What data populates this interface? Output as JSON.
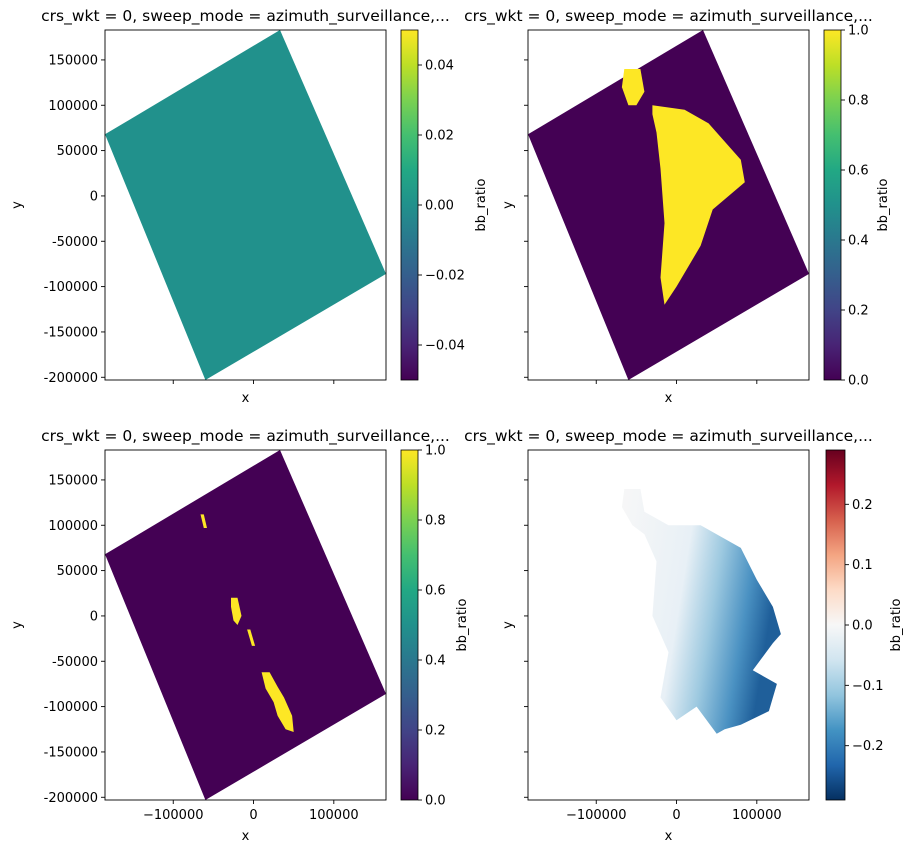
{
  "chart_data": [
    {
      "type": "heatmap",
      "title": "crs_wkt = 0, sweep_mode = azimuth_surveillance,...",
      "xlabel": "x",
      "ylabel": "y",
      "xlim": [
        -185000,
        165000
      ],
      "ylim": [
        -203000,
        183000
      ],
      "x_ticks": [
        -100000,
        0,
        100000
      ],
      "x_tick_labels": [
        "",
        "",
        ""
      ],
      "y_ticks": [
        150000,
        100000,
        50000,
        0,
        -50000,
        -100000,
        -150000,
        -200000
      ],
      "y_tick_labels": [
        "150000",
        "100000",
        "50000",
        "0",
        "-50000",
        "-100000",
        "-150000",
        "-200000"
      ],
      "colorbar": {
        "label": "bb_ratio",
        "colormap": "viridis",
        "range": [
          -0.05,
          0.05
        ],
        "ticks": [
          0.04,
          0.02,
          0.0,
          -0.02,
          -0.04
        ],
        "tick_labels": [
          "0.04",
          "0.02",
          "0.00",
          "−0.02",
          "−0.04"
        ]
      },
      "fill_value": 0.0,
      "fill_color": "#21918c",
      "footprint": [
        [
          33000,
          183000
        ],
        [
          165000,
          -86000
        ],
        [
          -60000,
          -203000
        ],
        [
          -185000,
          68000
        ]
      ]
    },
    {
      "type": "heatmap",
      "title": "crs_wkt = 0, sweep_mode = azimuth_surveillance,...",
      "xlabel": "x",
      "ylabel": "y",
      "xlim": [
        -185000,
        165000
      ],
      "ylim": [
        -203000,
        183000
      ],
      "x_ticks": [
        -100000,
        0,
        100000
      ],
      "x_tick_labels": [
        "",
        "",
        ""
      ],
      "y_ticks": [
        150000,
        100000,
        50000,
        0,
        -50000,
        -100000,
        -150000,
        -200000
      ],
      "y_tick_labels": [
        "",
        "",
        "",
        "",
        "",
        "",
        "",
        ""
      ],
      "colorbar": {
        "label": "bb_ratio",
        "colormap": "viridis",
        "range": [
          0.0,
          1.0
        ],
        "ticks": [
          1.0,
          0.8,
          0.6,
          0.4,
          0.2,
          0.0
        ],
        "tick_labels": [
          "1.0",
          "0.8",
          "0.6",
          "0.4",
          "0.2",
          "0.0"
        ]
      },
      "background_value": 0.0,
      "background_color": "#440154",
      "highlight_value": 1.0,
      "highlight_color": "#fde725",
      "footprint": [
        [
          33000,
          183000
        ],
        [
          165000,
          -86000
        ],
        [
          -60000,
          -203000
        ],
        [
          -185000,
          68000
        ]
      ],
      "highlight_regions": [
        [
          [
            -65000,
            140000
          ],
          [
            -45000,
            140000
          ],
          [
            -40000,
            115000
          ],
          [
            -50000,
            100000
          ],
          [
            -60000,
            100000
          ],
          [
            -68000,
            120000
          ]
        ],
        [
          [
            -30000,
            100000
          ],
          [
            10000,
            95000
          ],
          [
            40000,
            80000
          ],
          [
            80000,
            40000
          ],
          [
            85000,
            15000
          ],
          [
            45000,
            -15000
          ],
          [
            30000,
            -55000
          ],
          [
            0,
            -100000
          ],
          [
            -15000,
            -120000
          ],
          [
            -20000,
            -90000
          ],
          [
            -15000,
            -30000
          ],
          [
            -20000,
            30000
          ],
          [
            -25000,
            70000
          ],
          [
            -30000,
            90000
          ]
        ]
      ]
    },
    {
      "type": "heatmap",
      "title": "crs_wkt = 0, sweep_mode = azimuth_surveillance,...",
      "xlabel": "x",
      "ylabel": "y",
      "xlim": [
        -185000,
        165000
      ],
      "ylim": [
        -203000,
        183000
      ],
      "x_ticks": [
        -100000,
        0,
        100000
      ],
      "x_tick_labels": [
        "−100000",
        "0",
        "100000"
      ],
      "y_ticks": [
        150000,
        100000,
        50000,
        0,
        -50000,
        -100000,
        -150000,
        -200000
      ],
      "y_tick_labels": [
        "150000",
        "100000",
        "50000",
        "0",
        "-50000",
        "-100000",
        "-150000",
        "-200000"
      ],
      "colorbar": {
        "label": "bb_ratio",
        "colormap": "viridis",
        "range": [
          0.0,
          1.0
        ],
        "ticks": [
          1.0,
          0.8,
          0.6,
          0.4,
          0.2,
          0.0
        ],
        "tick_labels": [
          "1.0",
          "0.8",
          "0.6",
          "0.4",
          "0.2",
          "0.0"
        ]
      },
      "background_value": 0.0,
      "background_color": "#440154",
      "highlight_value": 1.0,
      "highlight_color": "#fde725",
      "footprint": [
        [
          33000,
          183000
        ],
        [
          165000,
          -86000
        ],
        [
          -60000,
          -203000
        ],
        [
          -185000,
          68000
        ]
      ],
      "highlight_regions": [
        [
          [
            -66000,
            112000
          ],
          [
            -62000,
            112000
          ],
          [
            -58000,
            97000
          ],
          [
            -62000,
            97000
          ]
        ],
        [
          [
            -28000,
            20000
          ],
          [
            -20000,
            20000
          ],
          [
            -15000,
            0
          ],
          [
            -20000,
            -10000
          ],
          [
            -25000,
            -5000
          ],
          [
            -28000,
            10000
          ]
        ],
        [
          [
            -8000,
            -15000
          ],
          [
            -4000,
            -15000
          ],
          [
            2000,
            -33000
          ],
          [
            -2000,
            -33000
          ]
        ],
        [
          [
            10000,
            -62000
          ],
          [
            20000,
            -62000
          ],
          [
            30000,
            -78000
          ],
          [
            38000,
            -90000
          ],
          [
            48000,
            -110000
          ],
          [
            50000,
            -128000
          ],
          [
            40000,
            -125000
          ],
          [
            30000,
            -110000
          ],
          [
            25000,
            -95000
          ],
          [
            15000,
            -80000
          ]
        ]
      ]
    },
    {
      "type": "heatmap",
      "title": "crs_wkt = 0, sweep_mode = azimuth_surveillance,...",
      "xlabel": "x",
      "ylabel": "y",
      "xlim": [
        -185000,
        165000
      ],
      "ylim": [
        -203000,
        183000
      ],
      "x_ticks": [
        -100000,
        0,
        100000
      ],
      "x_tick_labels": [
        "−100000",
        "0",
        "100000"
      ],
      "y_ticks": [
        150000,
        100000,
        50000,
        0,
        -50000,
        -100000,
        -150000,
        -200000
      ],
      "y_tick_labels": [
        "",
        "",
        "",
        "",
        "",
        "",
        "",
        ""
      ],
      "colorbar": {
        "label": "bb_ratio",
        "colormap": "RdBu_r",
        "range": [
          -0.29,
          0.29
        ],
        "ticks": [
          0.2,
          0.1,
          0.0,
          -0.1,
          -0.2
        ],
        "tick_labels": [
          "0.2",
          "0.1",
          "0.0",
          "−0.1",
          "−0.2"
        ]
      },
      "data_region": [
        [
          -65000,
          140000
        ],
        [
          -45000,
          140000
        ],
        [
          -40000,
          115000
        ],
        [
          -10000,
          100000
        ],
        [
          30000,
          100000
        ],
        [
          80000,
          75000
        ],
        [
          100000,
          40000
        ],
        [
          120000,
          10000
        ],
        [
          130000,
          -20000
        ],
        [
          120000,
          -30000
        ],
        [
          95000,
          -60000
        ],
        [
          125000,
          -75000
        ],
        [
          115000,
          -105000
        ],
        [
          80000,
          -120000
        ],
        [
          60000,
          -125000
        ],
        [
          50000,
          -130000
        ],
        [
          25000,
          -100000
        ],
        [
          0,
          -115000
        ],
        [
          -20000,
          -90000
        ],
        [
          -10000,
          -40000
        ],
        [
          -30000,
          0
        ],
        [
          -25000,
          60000
        ],
        [
          -40000,
          90000
        ],
        [
          -55000,
          100000
        ],
        [
          -68000,
          120000
        ]
      ]
    }
  ]
}
